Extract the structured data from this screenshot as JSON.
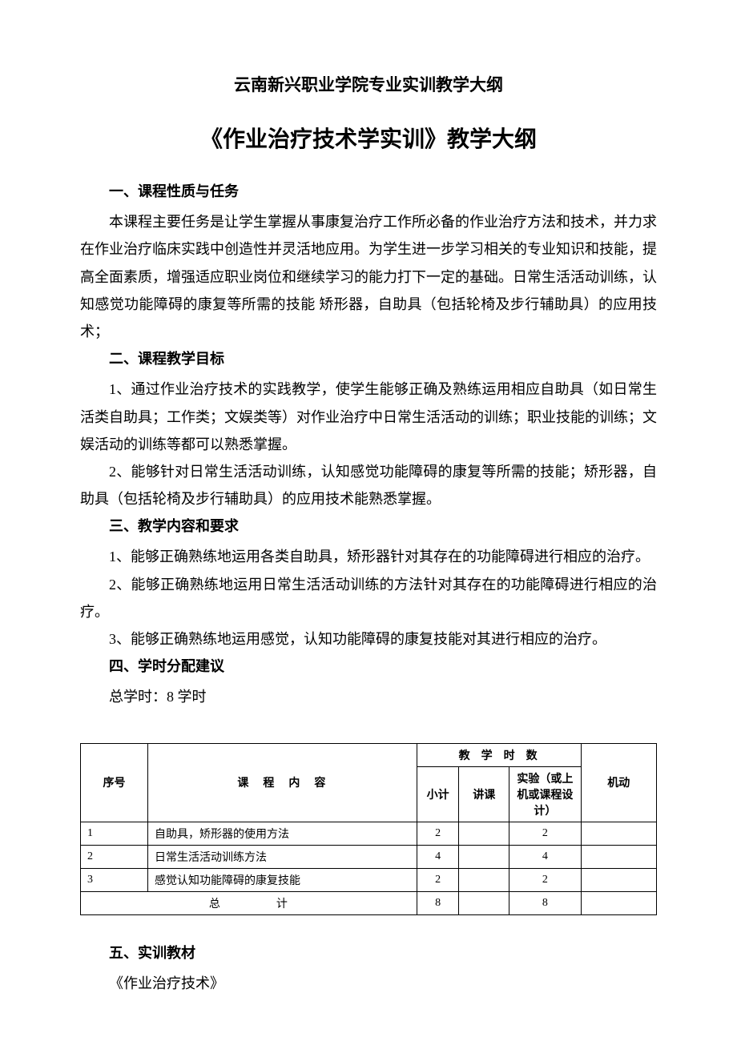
{
  "header": "云南新兴职业学院专业实训教学大纲",
  "title": "《作业治疗技术学实训》教学大纲",
  "sections": {
    "s1": {
      "title": "一、课程性质与任务",
      "p1": "本课程主要任务是让学生掌握从事康复治疗工作所必备的作业治疗方法和技术，并力求在作业治疗临床实践中创造性并灵活地应用。为学生进一步学习相关的专业知识和技能，提高全面素质，增强适应职业岗位和继续学习的能力打下一定的基础。日常生活活动训练，认知感觉功能障碍的康复等所需的技能 矫形器，自助具（包括轮椅及步行辅助具）的应用技术；"
    },
    "s2": {
      "title": "二、课程教学目标",
      "p1": "1、通过作业治疗技术的实践教学，使学生能够正确及熟练运用相应自助具（如日常生活类自助具；工作类；文娱类等）对作业治疗中日常生活活动的训练；职业技能的训练；文娱活动的训练等都可以熟悉掌握。",
      "p2": "2、能够针对日常生活活动训练，认知感觉功能障碍的康复等所需的技能；矫形器，自助具（包括轮椅及步行辅助具）的应用技术能熟悉掌握。"
    },
    "s3": {
      "title": "三、教学内容和要求",
      "p1": "1、能够正确熟练地运用各类自助具，矫形器针对其存在的功能障碍进行相应的治疗。",
      "p2": "2、能够正确熟练地运用日常生活活动训练的方法针对其存在的功能障碍进行相应的治疗。",
      "p3": "3、能够正确熟练地运用感觉，认知功能障碍的康复技能对其进行相应的治疗。"
    },
    "s4": {
      "title": "四、学时分配建议",
      "p1": "总学时：8 学时"
    },
    "s5": {
      "title": "五、实训教材",
      "p1": "《作业治疗技术》"
    }
  },
  "table": {
    "headers": {
      "seq": "序号",
      "content": "课程内容",
      "hours_group": "教学时数",
      "subtotal": "小计",
      "lecture": "讲课",
      "lab": "实验（或上机或课程设计）",
      "flex": "机动"
    },
    "rows": [
      {
        "seq": "1",
        "content": "自助具，矫形器的使用方法",
        "subtotal": "2",
        "lecture": "",
        "lab": "2",
        "flex": ""
      },
      {
        "seq": "2",
        "content": "日常生活活动训练方法",
        "subtotal": "4",
        "lecture": "",
        "lab": "4",
        "flex": ""
      },
      {
        "seq": "3",
        "content": "感觉认知功能障碍的康复技能",
        "subtotal": "2",
        "lecture": "",
        "lab": "2",
        "flex": ""
      }
    ],
    "total": {
      "label": "总计",
      "subtotal": "8",
      "lecture": "",
      "lab": "8",
      "flex": ""
    }
  },
  "styles": {
    "body_font_size": 18,
    "title_font_size": 28,
    "header_font_size": 21,
    "table_font_size": 14,
    "text_color": "#000000",
    "background_color": "#ffffff",
    "border_color": "#000000"
  }
}
